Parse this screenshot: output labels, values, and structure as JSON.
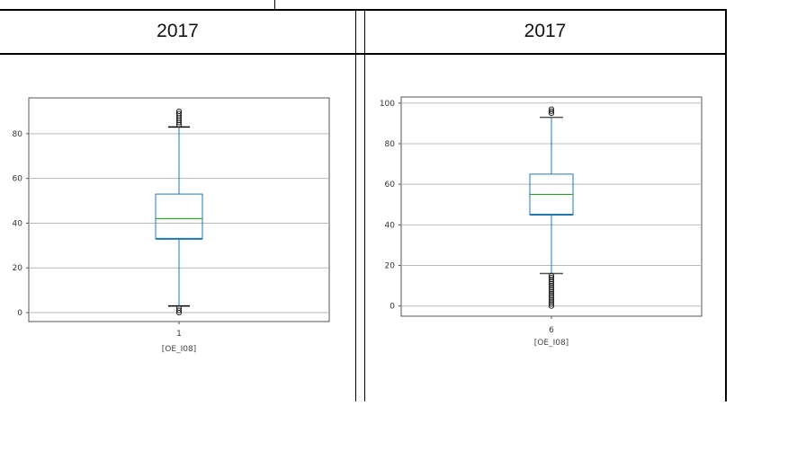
{
  "table": {
    "headers": [
      "2017",
      "2017"
    ]
  },
  "chart_data": [
    {
      "type": "box",
      "category": "1",
      "xlabel": "[OE_I08]",
      "ylim": [
        -4,
        96
      ],
      "yticks": [
        0,
        20,
        40,
        60,
        80
      ],
      "grid": true,
      "box": {
        "q1": 33,
        "median": 42,
        "q3": 53,
        "whisker_low": 3,
        "whisker_high": 83
      },
      "outliers": [
        90,
        89,
        88,
        87,
        86,
        85,
        84,
        2,
        1,
        0
      ],
      "colors": {
        "box": "#1f77b4",
        "median": "#2ca02c",
        "whisker": "#1f77b4",
        "cap": "#000000"
      }
    },
    {
      "type": "box",
      "category": "6",
      "xlabel": "[OE_I08]",
      "ylim": [
        -5,
        103
      ],
      "yticks": [
        0,
        20,
        40,
        60,
        80,
        100
      ],
      "grid": true,
      "box": {
        "q1": 45,
        "median": 55,
        "q3": 65,
        "whisker_low": 16,
        "whisker_high": 93
      },
      "outliers": [
        97,
        96,
        95,
        15,
        14,
        13,
        12,
        11,
        10,
        9,
        8,
        7,
        6,
        5,
        4,
        3,
        2,
        1,
        0
      ],
      "colors": {
        "box": "#1f77b4",
        "median": "#2ca02c",
        "whisker": "#1f77b4",
        "cap": "#555555"
      }
    }
  ]
}
